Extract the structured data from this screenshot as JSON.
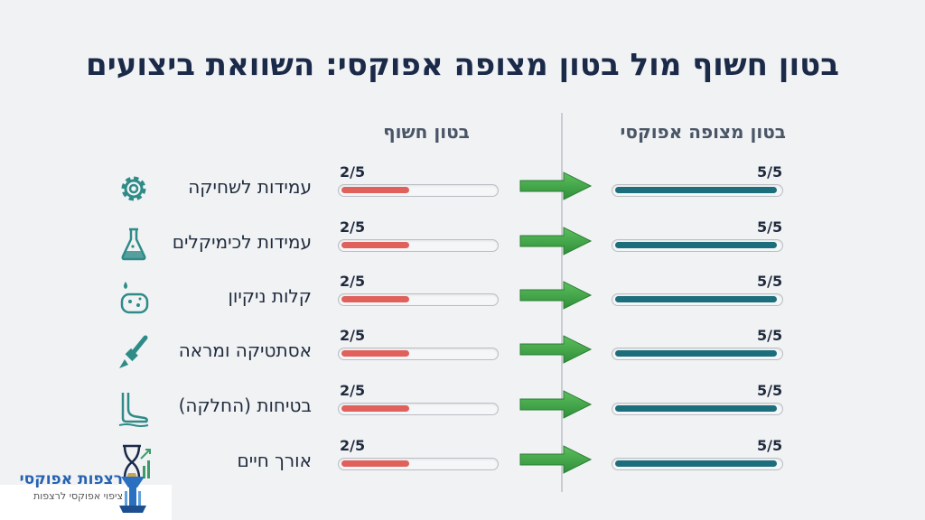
{
  "title": "בטון חשוף מול בטון מצופה אפוקסי: השוואת ביצועים",
  "chart_data": {
    "type": "bar",
    "max": 5,
    "series": [
      {
        "name": "בטון חשוף",
        "color": "#e0605c",
        "values": [
          2,
          2,
          2,
          2,
          2,
          2
        ],
        "labels": [
          "2/5",
          "2/5",
          "2/5",
          "2/5",
          "2/5",
          "2/5"
        ]
      },
      {
        "name": "בטון מצופה אפוקסי",
        "color": "#1d6e7c",
        "values": [
          5,
          5,
          5,
          5,
          5,
          5
        ],
        "labels": [
          "5/5",
          "5/5",
          "5/5",
          "5/5",
          "5/5",
          "5/5"
        ]
      }
    ],
    "categories": [
      {
        "label": "עמידות לשחיקה",
        "icon": "gear-icon"
      },
      {
        "label": "עמידות לכימיקלים",
        "icon": "flask-icon"
      },
      {
        "label": "קלות ניקיון",
        "icon": "sponge-icon"
      },
      {
        "label": "אסתטיקה ומראה",
        "icon": "paintbrush-icon"
      },
      {
        "label": "בטיחות (החלקה)",
        "icon": "foot-slip-icon"
      },
      {
        "label": "אורך חיים",
        "icon": "hourglass-growth-icon"
      }
    ]
  },
  "logo": {
    "name": "רצפות אפוקסי",
    "tagline": "ציפוי אפוקסי לרצפות"
  }
}
